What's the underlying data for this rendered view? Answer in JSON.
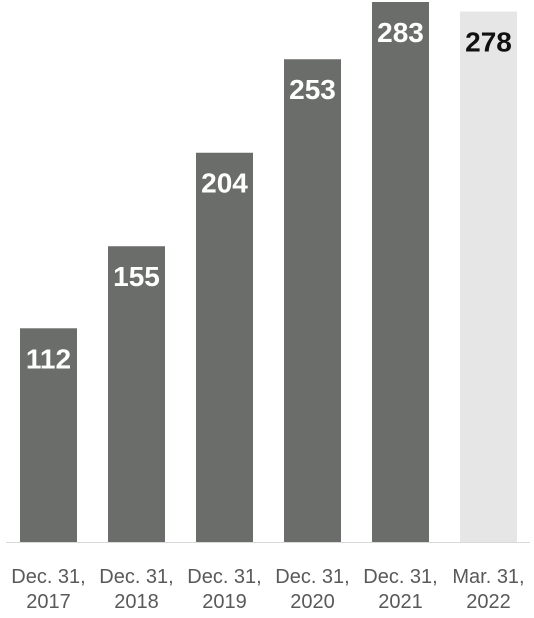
{
  "chart_data": {
    "type": "bar",
    "categories": [
      [
        "Dec. 31,",
        "2017"
      ],
      [
        "Dec. 31,",
        "2018"
      ],
      [
        "Dec. 31,",
        "2019"
      ],
      [
        "Dec. 31,",
        "2020"
      ],
      [
        "Dec. 31,",
        "2021"
      ],
      [
        "Mar. 31,",
        "2022"
      ]
    ],
    "values": [
      112,
      155,
      204,
      253,
      283,
      278
    ],
    "data_labels": [
      "112",
      "155",
      "204",
      "253",
      "283",
      "278"
    ],
    "title": "",
    "xlabel": "",
    "ylabel": "",
    "ylim": [
      0,
      283
    ],
    "grid": false,
    "legend": "none",
    "colors": {
      "bar": "#6b6d6a",
      "highlight_bar": "#e6e6e6",
      "label_on_dark": "#ffffff",
      "label_on_light": "#111111",
      "category_text": "#595959",
      "axis_line": "#d9d9d9"
    },
    "highlight_index": 5
  }
}
